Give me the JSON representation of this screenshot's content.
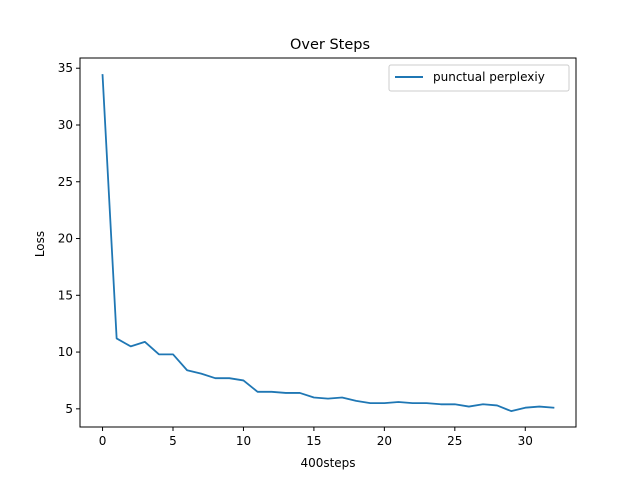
{
  "chart_data": {
    "type": "line",
    "title": "Over Steps",
    "xlabel": "400steps",
    "ylabel": "Loss",
    "xlim": [
      -1.6,
      33.6
    ],
    "ylim": [
      3.4,
      35.9
    ],
    "xticks": [
      0,
      5,
      10,
      15,
      20,
      25,
      30
    ],
    "yticks": [
      5,
      10,
      15,
      20,
      25,
      30,
      35
    ],
    "grid": false,
    "legend_position": "top-right",
    "series": [
      {
        "name": "punctual perplexiy",
        "color": "#1f77b4",
        "x": [
          0,
          1,
          2,
          3,
          4,
          5,
          6,
          7,
          8,
          9,
          10,
          11,
          12,
          13,
          14,
          15,
          16,
          17,
          18,
          19,
          20,
          21,
          22,
          23,
          24,
          25,
          26,
          27,
          28,
          29,
          30,
          31,
          32
        ],
        "y": [
          34.4,
          11.2,
          10.5,
          10.9,
          9.8,
          9.8,
          8.4,
          8.1,
          7.7,
          7.7,
          7.5,
          6.5,
          6.5,
          6.4,
          6.4,
          6.0,
          5.9,
          6.0,
          5.7,
          5.5,
          5.5,
          5.6,
          5.5,
          5.5,
          5.4,
          5.4,
          5.2,
          5.4,
          5.3,
          4.8,
          5.1,
          5.2,
          5.1
        ]
      }
    ]
  }
}
